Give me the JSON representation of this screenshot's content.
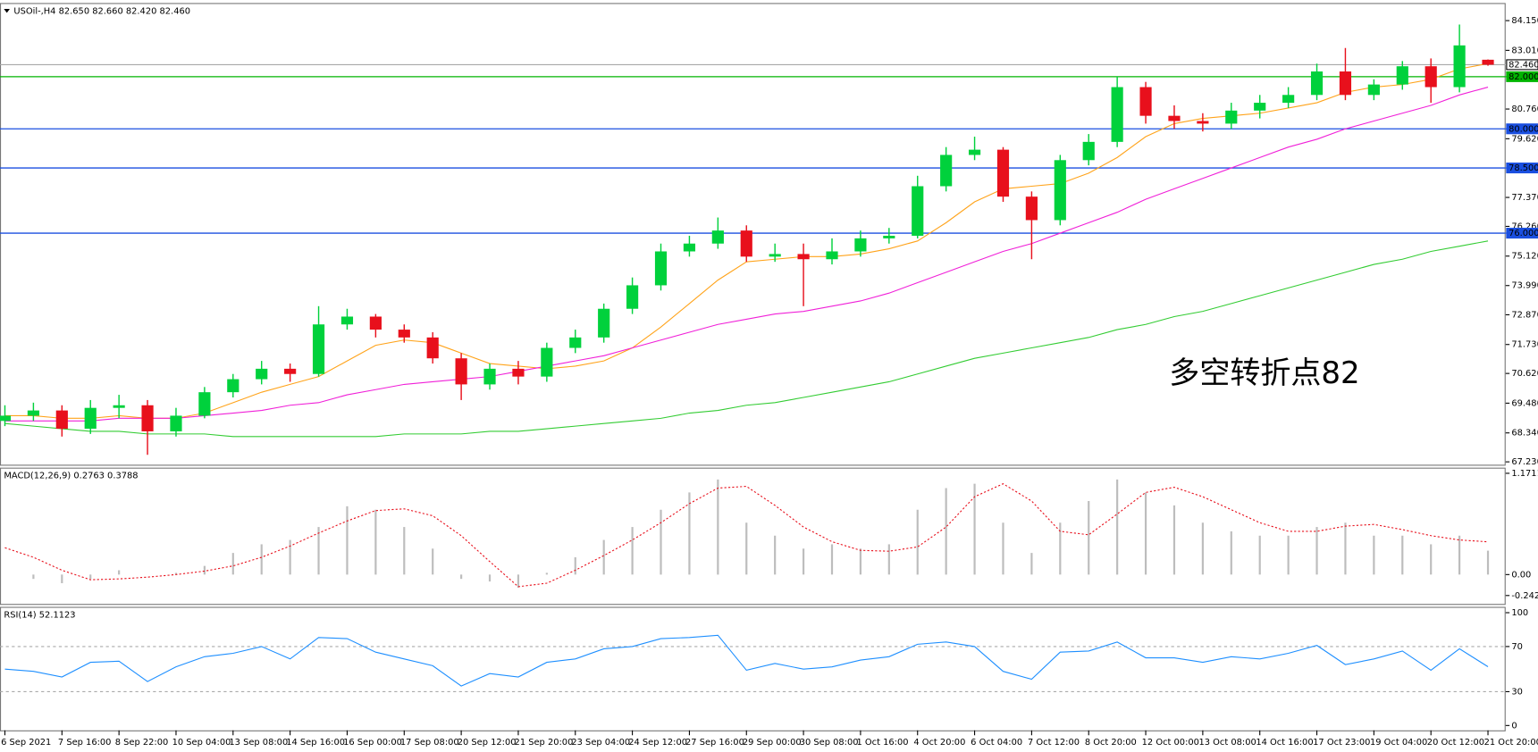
{
  "chart_data": [
    {
      "type": "candlestick",
      "title": "USOil-,H4",
      "header_values": [
        {
          "value": 82.65,
          "label": "82.650"
        },
        {
          "value": 82.66,
          "label": "82.660"
        },
        {
          "value": 82.42,
          "label": "82.420"
        },
        {
          "value": 82.46,
          "label": "82.460"
        }
      ],
      "categories": [
        "6 Sep 2021",
        null,
        "7 Sep 16:00",
        null,
        "8 Sep 22:00",
        null,
        "10 Sep 04:00",
        null,
        "13 Sep 08:00",
        null,
        "14 Sep 16:00",
        null,
        "16 Sep 00:00",
        null,
        "17 Sep 08:00",
        null,
        "20 Sep 12:00",
        null,
        "21 Sep 20:00",
        null,
        "23 Sep 04:00",
        null,
        "24 Sep 12:00",
        null,
        "27 Sep 16:00",
        null,
        "29 Sep 00:00",
        null,
        "30 Sep 08:00",
        null,
        "1 Oct 16:00",
        null,
        "4 Oct 20:00",
        null,
        "6 Oct 04:00",
        null,
        "7 Oct 12:00",
        null,
        "8 Oct 20:00",
        null,
        "12 Oct 00:00",
        null,
        "13 Oct 08:00",
        null,
        "14 Oct 16:00",
        null,
        "17 Oct 23:00",
        null,
        "19 Oct 04:00",
        null,
        "20 Oct 12:00",
        null,
        "21 Oct 20:00"
      ],
      "open": [
        68.8,
        69.0,
        69.2,
        68.5,
        69.3,
        69.4,
        68.4,
        69.0,
        69.9,
        70.4,
        70.8,
        70.6,
        72.5,
        72.8,
        72.3,
        72.0,
        71.2,
        70.2,
        70.8,
        70.5,
        71.6,
        72.0,
        73.1,
        74.0,
        75.3,
        75.6,
        76.1,
        75.1,
        75.2,
        75.0,
        75.3,
        75.8,
        75.9,
        77.8,
        79.0,
        79.2,
        77.4,
        76.5,
        78.8,
        79.5,
        81.6,
        80.5,
        80.3,
        80.2,
        80.7,
        81.0,
        81.3,
        82.2,
        81.3,
        81.7,
        82.4,
        81.6,
        82.65
      ],
      "high": [
        69.4,
        69.5,
        69.4,
        69.6,
        69.8,
        69.6,
        69.3,
        70.1,
        70.6,
        71.1,
        71.0,
        73.2,
        73.1,
        72.9,
        72.5,
        72.2,
        71.4,
        71.0,
        71.1,
        71.8,
        72.3,
        73.3,
        74.3,
        75.6,
        75.9,
        76.6,
        76.3,
        75.6,
        75.6,
        75.8,
        76.1,
        76.2,
        78.2,
        79.3,
        79.7,
        79.3,
        77.6,
        79.0,
        79.8,
        82.0,
        81.8,
        80.9,
        80.6,
        81.0,
        81.3,
        81.6,
        82.5,
        83.1,
        81.9,
        82.6,
        82.7,
        84.0,
        82.66
      ],
      "low": [
        68.6,
        68.8,
        68.2,
        68.3,
        68.9,
        67.5,
        68.2,
        68.9,
        69.7,
        70.2,
        70.3,
        70.5,
        72.3,
        72.0,
        71.8,
        71.0,
        69.6,
        70.0,
        70.2,
        70.3,
        71.4,
        71.8,
        72.9,
        73.8,
        75.1,
        75.4,
        74.9,
        74.9,
        73.2,
        74.8,
        75.1,
        75.6,
        75.8,
        77.6,
        78.8,
        77.2,
        75.0,
        76.3,
        78.6,
        79.3,
        80.2,
        80.0,
        79.9,
        80.0,
        80.4,
        80.8,
        81.1,
        81.1,
        81.1,
        81.5,
        81.0,
        81.4,
        82.42
      ],
      "close": [
        69.0,
        69.2,
        68.5,
        69.3,
        69.4,
        68.4,
        69.0,
        69.9,
        70.4,
        70.8,
        70.6,
        72.5,
        72.8,
        72.3,
        72.0,
        71.2,
        70.2,
        70.8,
        70.5,
        71.6,
        72.0,
        73.1,
        74.0,
        75.3,
        75.6,
        76.1,
        75.1,
        75.2,
        75.0,
        75.3,
        75.8,
        75.9,
        77.8,
        79.0,
        79.2,
        77.4,
        76.5,
        78.8,
        79.5,
        81.6,
        80.5,
        80.3,
        80.2,
        80.7,
        81.0,
        81.3,
        82.2,
        81.3,
        81.7,
        82.4,
        81.6,
        83.2,
        82.46
      ],
      "up_color": "#00d13c",
      "down_color": "#e8101c",
      "lines": [
        {
          "color": "#ffa31a",
          "values": [
            69.0,
            69.0,
            68.9,
            68.9,
            69.0,
            68.9,
            68.9,
            69.1,
            69.5,
            69.9,
            70.2,
            70.5,
            71.1,
            71.7,
            71.9,
            71.8,
            71.4,
            71.0,
            70.9,
            70.8,
            70.9,
            71.1,
            71.6,
            72.4,
            73.3,
            74.2,
            74.9,
            75.0,
            75.1,
            75.1,
            75.2,
            75.4,
            75.7,
            76.4,
            77.2,
            77.7,
            77.8,
            77.9,
            78.3,
            78.9,
            79.7,
            80.2,
            80.4,
            80.5,
            80.6,
            80.8,
            81.0,
            81.4,
            81.6,
            81.7,
            81.9,
            82.3,
            82.5
          ]
        },
        {
          "color": "#f020d8",
          "values": [
            68.8,
            68.8,
            68.8,
            68.8,
            68.9,
            68.9,
            68.9,
            69.0,
            69.1,
            69.2,
            69.4,
            69.5,
            69.8,
            70.0,
            70.2,
            70.3,
            70.4,
            70.5,
            70.7,
            70.9,
            71.1,
            71.3,
            71.6,
            71.9,
            72.2,
            72.5,
            72.7,
            72.9,
            73.0,
            73.2,
            73.4,
            73.7,
            74.1,
            74.5,
            74.9,
            75.3,
            75.6,
            76.0,
            76.4,
            76.8,
            77.3,
            77.7,
            78.1,
            78.5,
            78.9,
            79.3,
            79.6,
            80.0,
            80.3,
            80.6,
            80.9,
            81.3,
            81.6
          ]
        },
        {
          "color": "#33cc33",
          "values": [
            68.7,
            68.6,
            68.5,
            68.4,
            68.4,
            68.3,
            68.3,
            68.3,
            68.2,
            68.2,
            68.2,
            68.2,
            68.2,
            68.2,
            68.3,
            68.3,
            68.3,
            68.4,
            68.4,
            68.5,
            68.6,
            68.7,
            68.8,
            68.9,
            69.1,
            69.2,
            69.4,
            69.5,
            69.7,
            69.9,
            70.1,
            70.3,
            70.6,
            70.9,
            71.2,
            71.4,
            71.6,
            71.8,
            72.0,
            72.3,
            72.5,
            72.8,
            73.0,
            73.3,
            73.6,
            73.9,
            74.2,
            74.5,
            74.8,
            75.0,
            75.3,
            75.5,
            75.7
          ]
        }
      ],
      "levels": [
        {
          "value": 82,
          "label": "82.000",
          "color": "#00b400"
        },
        {
          "value": 80,
          "label": "80.000",
          "color": "#1a4fe0"
        },
        {
          "value": 78.5,
          "label": "78.500",
          "color": "#1a4fe0"
        },
        {
          "value": 76,
          "label": "76.000",
          "color": "#1a4fe0"
        }
      ],
      "current_price": {
        "value": 82.46,
        "label": "82.460",
        "color": "#a8a8a8"
      },
      "ylim": [
        67.12,
        84.75
      ],
      "yticks": [
        {
          "value": 84.15,
          "label": "84.150"
        },
        {
          "value": 83.01,
          "label": "83.010"
        },
        {
          "value": 80.76,
          "label": "80.760"
        },
        {
          "value": 79.62,
          "label": "79.620"
        },
        {
          "value": 77.37,
          "label": "77.370"
        },
        {
          "value": 76.26,
          "label": "76.260"
        },
        {
          "value": 75.12,
          "label": "75.120"
        },
        {
          "value": 73.99,
          "label": "73.990"
        },
        {
          "value": 72.87,
          "label": "72.870"
        },
        {
          "value": 71.73,
          "label": "71.730"
        },
        {
          "value": 70.62,
          "label": "70.620"
        },
        {
          "value": 69.48,
          "label": "69.480"
        },
        {
          "value": 68.34,
          "label": "68.340"
        },
        {
          "value": 67.23,
          "label": "67.230"
        }
      ],
      "annotation": {
        "text": "多空转折点82",
        "color": "#e8101c"
      }
    },
    {
      "type": "macd",
      "title": "MACD(12,26,9)",
      "histogram": [
        0.0,
        -0.05,
        -0.1,
        -0.05,
        0.05,
        0.0,
        0.02,
        0.1,
        0.25,
        0.35,
        0.4,
        0.55,
        0.79,
        0.75,
        0.55,
        0.3,
        -0.05,
        -0.08,
        -0.15,
        0.02,
        0.2,
        0.4,
        0.55,
        0.75,
        0.95,
        1.1,
        0.6,
        0.45,
        0.3,
        0.35,
        0.3,
        0.35,
        0.75,
        1.0,
        1.05,
        0.6,
        0.25,
        0.6,
        0.85,
        1.1,
        0.95,
        0.8,
        0.6,
        0.5,
        0.45,
        0.45,
        0.55,
        0.6,
        0.45,
        0.45,
        0.35,
        0.45,
        0.2763
      ],
      "signal": [
        0.31,
        0.2,
        0.05,
        -0.06,
        -0.05,
        -0.03,
        0.0,
        0.04,
        0.1,
        0.2,
        0.33,
        0.48,
        0.62,
        0.74,
        0.76,
        0.68,
        0.45,
        0.15,
        -0.14,
        -0.1,
        0.05,
        0.22,
        0.4,
        0.6,
        0.82,
        1.0,
        1.02,
        0.8,
        0.55,
        0.38,
        0.28,
        0.27,
        0.32,
        0.55,
        0.9,
        1.05,
        0.85,
        0.5,
        0.46,
        0.7,
        0.95,
        1.01,
        0.9,
        0.75,
        0.6,
        0.5,
        0.5,
        0.56,
        0.58,
        0.52,
        0.45,
        0.4,
        0.3788
      ],
      "histogram_color": "#bdbdbd",
      "signal_color": "#e8101c",
      "ylim": [
        -0.328,
        1.225
      ],
      "yticks": [
        1.1711,
        {
          "value": 0,
          "label": "0.00"
        },
        -0.2424
      ]
    },
    {
      "type": "line",
      "title": "RSI(14)",
      "values": [
        50,
        48,
        43,
        56,
        57,
        39,
        52,
        61,
        64,
        70,
        59,
        78,
        77,
        65,
        59,
        53,
        35,
        46,
        43,
        56,
        59,
        68,
        70,
        77,
        78,
        80,
        49,
        55,
        50,
        52,
        58,
        61,
        72,
        74,
        70,
        48,
        41,
        65,
        66,
        74,
        60,
        60,
        56,
        61,
        59,
        64,
        71,
        54,
        59,
        66,
        49,
        68,
        52.1123
      ],
      "color": "#1e8fff",
      "ylim": [
        -4.3,
        104.3
      ],
      "yticks": [
        100,
        70,
        30,
        0
      ],
      "levels": [
        70,
        30
      ]
    }
  ]
}
